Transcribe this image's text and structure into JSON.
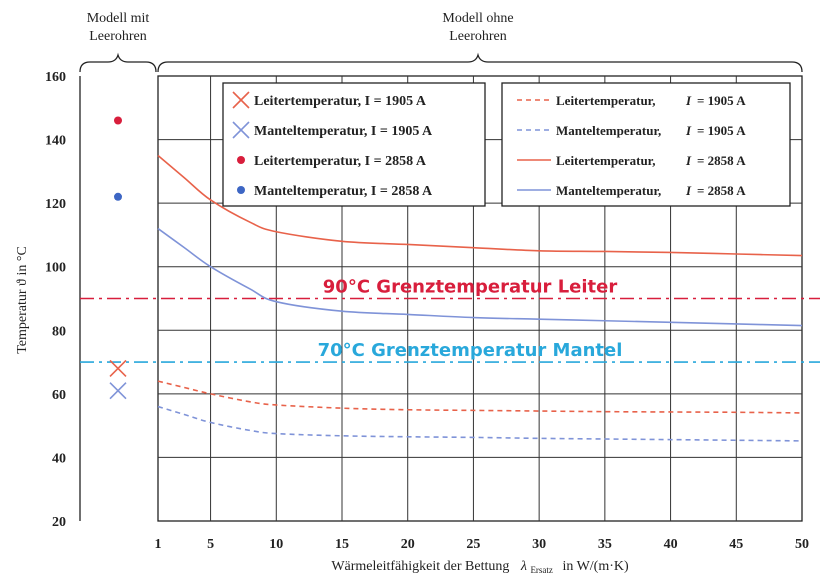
{
  "chart_data": {
    "type": "line",
    "xlabel": "Wärmeleitfähigkeit der Bettung",
    "xlabel_symbol": "λ",
    "xlabel_sub": "Ersatz",
    "xlabel_unit": "in W/(m·K)",
    "ylabel": "Temperatur ϑ in °C",
    "xlim": [
      1,
      50
    ],
    "ylim": [
      20,
      160
    ],
    "grid": true,
    "x_ticks": [
      "1",
      "5",
      "10",
      "15",
      "20",
      "25",
      "30",
      "35",
      "40",
      "45",
      "50"
    ],
    "y_ticks": [
      "20",
      "40",
      "60",
      "80",
      "100",
      "120",
      "140",
      "160"
    ],
    "group_labels": {
      "with_conduits": [
        "Modell mit",
        "Leerohren"
      ],
      "without_conduits": [
        "Modell ohne",
        "Leerohren"
      ]
    },
    "colors": {
      "leiter": "#e8624a",
      "mantel": "#7f93d8",
      "limit_leiter": "#d81e3c",
      "limit_mantel": "#29a8db"
    },
    "thresholds": [
      {
        "label": "90°C Grenztemperatur Leiter",
        "y": 90,
        "color": "#d81e3c"
      },
      {
        "label": "70°C Grenztemperatur Mantel",
        "y": 70,
        "color": "#29a8db"
      }
    ],
    "points_with_conduits": [
      {
        "marker": "x",
        "y": 68,
        "color": "#e8624a",
        "legend": "Leitertemperatur,  I = 1905 A"
      },
      {
        "marker": "x",
        "y": 61,
        "color": "#7f93d8",
        "legend": "Manteltemperatur, I = 1905 A"
      },
      {
        "marker": "dot",
        "y": 146,
        "color": "#d81e3c",
        "legend": "Leitertemperatur,  I = 2858 A"
      },
      {
        "marker": "dot",
        "y": 122,
        "color": "#3d66c4",
        "legend": "Manteltemperatur, I = 2858 A"
      }
    ],
    "x": [
      1,
      3,
      5,
      8,
      10,
      15,
      20,
      25,
      30,
      35,
      40,
      45,
      50
    ],
    "series": [
      {
        "name": "Leitertemperatur,  I = 1905 A",
        "style": "dashed",
        "color": "#e8624a",
        "values": [
          64,
          62,
          60,
          57.5,
          56.5,
          55.5,
          55,
          54.8,
          54.6,
          54.4,
          54.3,
          54.2,
          54
        ]
      },
      {
        "name": "Manteltemperatur, I = 1905 A",
        "style": "dashed",
        "color": "#7f93d8",
        "values": [
          56,
          53.5,
          51,
          48.5,
          47.5,
          46.8,
          46.5,
          46.3,
          46,
          45.8,
          45.6,
          45.4,
          45.2
        ]
      },
      {
        "name": "Leitertemperatur,  I = 2858 A",
        "style": "solid",
        "color": "#e8624a",
        "values": [
          135,
          128,
          121,
          114,
          111,
          108,
          107,
          106,
          105,
          104.8,
          104.5,
          104,
          103.5
        ]
      },
      {
        "name": "Manteltemperatur, I = 2858 A",
        "style": "solid",
        "color": "#7f93d8",
        "values": [
          112,
          106,
          100,
          93,
          89,
          86,
          85,
          84,
          83.5,
          83,
          82.5,
          82,
          81.5
        ]
      }
    ],
    "legend_left": [
      {
        "marker": "x",
        "color": "#e8624a",
        "text": "Leitertemperatur,  I = 1905 A"
      },
      {
        "marker": "x",
        "color": "#7f93d8",
        "text": "Manteltemperatur, I = 1905 A"
      },
      {
        "marker": "dot",
        "color": "#d81e3c",
        "text": "Leitertemperatur,  I = 2858 A"
      },
      {
        "marker": "dot",
        "color": "#3d66c4",
        "text": "Manteltemperatur, I = 2858 A"
      }
    ],
    "legend_right": [
      {
        "style": "dashed",
        "color": "#e8624a",
        "text": "Leitertemperatur,",
        "eq": "= 1905 A"
      },
      {
        "style": "dashed",
        "color": "#7f93d8",
        "text": "Manteltemperatur,",
        "eq": "= 1905 A"
      },
      {
        "style": "solid",
        "color": "#e8624a",
        "text": "Leitertemperatur,",
        "eq": "= 2858 A"
      },
      {
        "style": "solid",
        "color": "#7f93d8",
        "text": "Manteltemperatur,",
        "eq": "= 2858 A"
      }
    ],
    "legend_right_symbol": "I"
  }
}
